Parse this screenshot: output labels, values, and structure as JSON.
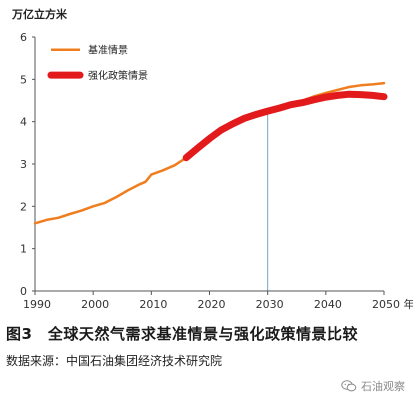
{
  "chart_data": {
    "type": "line",
    "ylabel": "万亿立方米",
    "xlabel": "",
    "xlim": [
      1990,
      2050
    ],
    "ylim": [
      0,
      6
    ],
    "x_ticks": [
      1990,
      2000,
      2010,
      2020,
      2030,
      2040,
      2050
    ],
    "x_tick_labels": [
      "1990",
      "2000",
      "2010",
      "2020",
      "2030",
      "2040",
      "2050 年"
    ],
    "y_ticks": [
      0,
      1,
      2,
      3,
      4,
      5,
      6
    ],
    "reference_line_x": 2030,
    "legend_position": "top-left",
    "series": [
      {
        "name": "基准情景",
        "color": "#f07d1e",
        "x": [
          1990,
          1992,
          1994,
          1996,
          1998,
          2000,
          2002,
          2004,
          2006,
          2008,
          2009,
          2010,
          2012,
          2014,
          2016,
          2018,
          2020,
          2022,
          2024,
          2026,
          2028,
          2030,
          2032,
          2034,
          2036,
          2038,
          2040,
          2042,
          2044,
          2046,
          2048,
          2050
        ],
        "values": [
          1.6,
          1.68,
          1.73,
          1.82,
          1.9,
          2.0,
          2.08,
          2.22,
          2.38,
          2.52,
          2.58,
          2.75,
          2.85,
          2.97,
          3.15,
          3.35,
          3.55,
          3.75,
          3.92,
          4.05,
          4.15,
          4.25,
          4.33,
          4.42,
          4.5,
          4.6,
          4.68,
          4.75,
          4.82,
          4.86,
          4.88,
          4.91
        ]
      },
      {
        "name": "强化政策情景",
        "color": "#e31a1c",
        "x": [
          2016,
          2018,
          2020,
          2022,
          2024,
          2026,
          2028,
          2030,
          2032,
          2034,
          2036,
          2038,
          2040,
          2042,
          2044,
          2046,
          2048,
          2050
        ],
        "values": [
          3.15,
          3.38,
          3.6,
          3.8,
          3.95,
          4.08,
          4.17,
          4.25,
          4.32,
          4.4,
          4.45,
          4.52,
          4.58,
          4.62,
          4.65,
          4.64,
          4.62,
          4.59
        ]
      }
    ]
  },
  "caption": "图3　全球天然气需求基准情景与强化政策情景比较",
  "source": "数据来源：中国石油集团经济技术研究院",
  "watermark": "石油观察",
  "watermark_icon": "wechat-icon"
}
